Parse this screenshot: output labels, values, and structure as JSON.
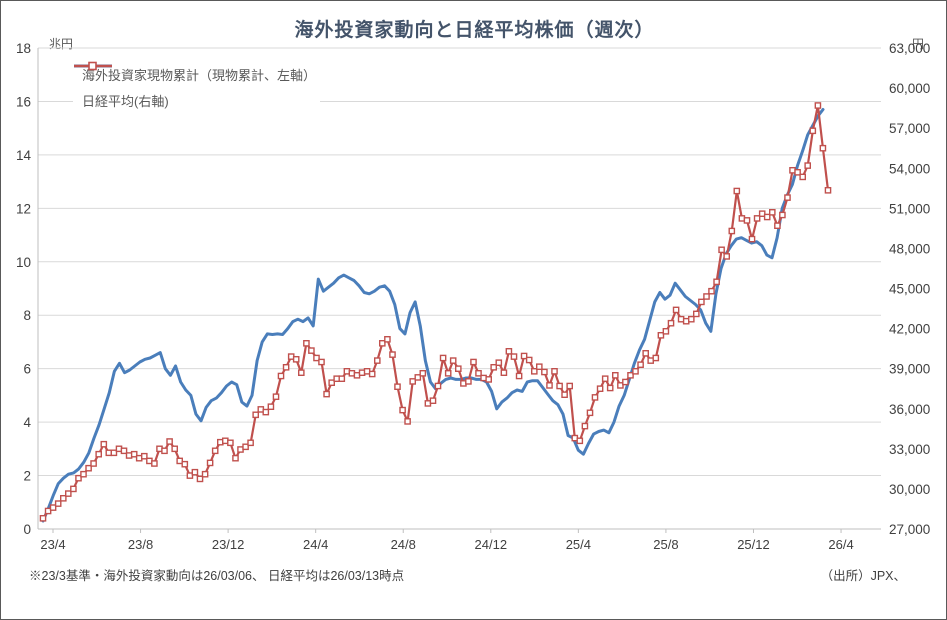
{
  "title": "海外投資家動向と日経平均株価（週次）",
  "left_axis": {
    "unit": "兆円",
    "tick_labels": [
      "18",
      "16",
      "14",
      "12",
      "10",
      "8",
      "6",
      "4",
      "2",
      "0"
    ],
    "min": 0,
    "max": 18,
    "step": 2
  },
  "right_axis": {
    "unit": "円",
    "tick_labels": [
      "63,000",
      "60,000",
      "57,000",
      "54,000",
      "51,000",
      "48,000",
      "45,000",
      "42,000",
      "39,000",
      "36,000",
      "33,000",
      "30,000",
      "27,000"
    ],
    "min": 27000,
    "max": 63000,
    "step": 3000
  },
  "x_axis": {
    "tick_labels": [
      "23/4",
      "23/8",
      "23/12",
      "24/4",
      "24/8",
      "24/12",
      "25/4",
      "25/8",
      "25/12",
      "26/4"
    ]
  },
  "legend": [
    {
      "label": "海外投資家現物累計（現物累計、左軸）",
      "color": "#4a7ebb",
      "style": "line"
    },
    {
      "label": "日経平均(右軸)",
      "color": "#c0504d",
      "style": "line-square-marker"
    }
  ],
  "footnote": "※23/3基準・海外投資家動向は26/03/06、 日経平均は26/03/13時点",
  "source": "（出所）JPX、",
  "colors": {
    "blue_series": "#4a7ebb",
    "red_series": "#c0504d",
    "gridline": "#d9d9d9",
    "axis_line": "#bfbfbf",
    "title_text": "#44546a",
    "tick_text": "#404040"
  },
  "chart_data": {
    "type": "line",
    "x_tick_labels": [
      "23/4",
      "23/8",
      "23/12",
      "24/4",
      "24/8",
      "24/12",
      "25/4",
      "25/8",
      "25/12",
      "26/4"
    ],
    "x_range_note": "weekly points from 23/3 base through 26/3",
    "grid": true,
    "legend_position": "top-left-inside",
    "left_ylim": [
      0,
      18
    ],
    "right_ylim": [
      27000,
      63000
    ],
    "series": [
      {
        "name": "海外投資家現物累計（現物累計、左軸）",
        "axis": "left",
        "unit": "兆円",
        "color": "#4a7ebb",
        "marker": "none",
        "values": [
          0.3,
          0.75,
          1.25,
          1.7,
          1.9,
          2.05,
          2.1,
          2.25,
          2.5,
          2.85,
          3.4,
          3.9,
          4.5,
          5.1,
          5.9,
          6.2,
          5.85,
          5.95,
          6.1,
          6.25,
          6.35,
          6.4,
          6.5,
          6.6,
          6.0,
          5.75,
          6.1,
          5.5,
          5.2,
          5.0,
          4.3,
          4.05,
          4.55,
          4.8,
          4.9,
          5.1,
          5.35,
          5.5,
          5.4,
          4.75,
          4.6,
          5.0,
          6.3,
          7.0,
          7.3,
          7.28,
          7.3,
          7.28,
          7.5,
          7.76,
          7.85,
          7.76,
          7.9,
          7.6,
          9.35,
          8.9,
          9.05,
          9.2,
          9.4,
          9.5,
          9.4,
          9.3,
          9.1,
          8.85,
          8.8,
          8.9,
          9.05,
          9.1,
          8.9,
          8.4,
          7.5,
          7.3,
          8.1,
          8.5,
          7.6,
          6.3,
          5.5,
          5.25,
          5.45,
          5.6,
          5.65,
          5.6,
          5.6,
          5.65,
          5.65,
          5.6,
          5.6,
          5.5,
          5.15,
          4.5,
          4.75,
          4.9,
          5.1,
          5.2,
          5.15,
          5.5,
          5.55,
          5.55,
          5.3,
          5.05,
          4.8,
          4.65,
          4.3,
          3.5,
          3.4,
          2.95,
          2.8,
          3.2,
          3.55,
          3.65,
          3.7,
          3.6,
          4.0,
          4.6,
          5.0,
          5.6,
          6.2,
          6.7,
          7.1,
          7.8,
          8.5,
          8.85,
          8.6,
          8.75,
          9.2,
          8.95,
          8.7,
          8.55,
          8.4,
          8.2,
          7.7,
          7.4,
          8.8,
          9.75,
          10.3,
          10.6,
          10.85,
          10.9,
          10.8,
          10.7,
          10.75,
          10.6,
          10.25,
          10.15,
          10.9,
          12.0,
          12.5,
          12.9,
          13.6,
          14.15,
          14.75,
          15.1,
          15.45,
          15.7
        ]
      },
      {
        "name": "日経平均(右軸)",
        "axis": "right",
        "unit": "円",
        "color": "#c0504d",
        "marker": "open-square",
        "values": [
          27800,
          28350,
          28600,
          28900,
          29300,
          29650,
          30000,
          30800,
          31100,
          31550,
          31900,
          32600,
          33350,
          32700,
          32700,
          33000,
          32850,
          32500,
          32600,
          32300,
          32450,
          32100,
          31900,
          33000,
          32850,
          33550,
          33000,
          32100,
          31850,
          31000,
          31250,
          30750,
          31100,
          31950,
          32850,
          33500,
          33600,
          33450,
          32300,
          32950,
          33150,
          33450,
          35550,
          35950,
          35750,
          36150,
          36900,
          38450,
          39100,
          39900,
          39700,
          38700,
          40900,
          40350,
          39800,
          39500,
          37100,
          37950,
          38250,
          38250,
          38800,
          38650,
          38500,
          38700,
          38800,
          38600,
          39600,
          40900,
          41200,
          40050,
          37650,
          35900,
          35050,
          38050,
          38350,
          38650,
          36400,
          36600,
          37700,
          39800,
          38650,
          39600,
          39000,
          37900,
          38050,
          39500,
          38650,
          38300,
          38200,
          39100,
          39450,
          38700,
          40300,
          39900,
          38450,
          39950,
          39650,
          38800,
          39150,
          38750,
          37750,
          38800,
          37700,
          37050,
          37700,
          33800,
          33600,
          34700,
          35700,
          36850,
          37500,
          38250,
          37550,
          38500,
          37750,
          38000,
          38500,
          38800,
          39300,
          40150,
          39600,
          39800,
          41500,
          41800,
          42400,
          43400,
          42700,
          42550,
          42700,
          43100,
          44000,
          44400,
          44800,
          45500,
          47900,
          47400,
          49300,
          52300,
          50250,
          50100,
          48700,
          50250,
          50600,
          50350,
          50700,
          49700,
          50500,
          51800,
          53850,
          53700,
          53350,
          54200,
          56800,
          58700,
          55500,
          52350
        ]
      }
    ]
  }
}
